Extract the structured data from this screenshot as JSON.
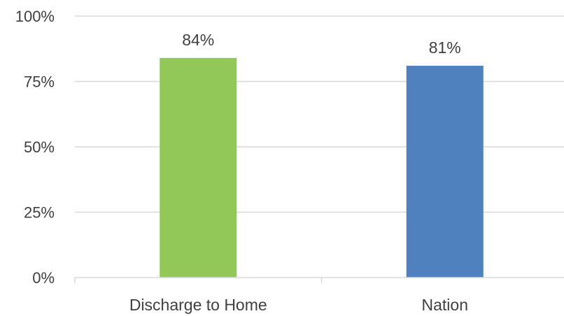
{
  "chart_data": {
    "type": "bar",
    "categories": [
      "Discharge to Home",
      "Nation"
    ],
    "values": [
      84,
      81
    ],
    "data_labels": [
      "84%",
      "81%"
    ],
    "colors": [
      "#92c857",
      "#4e81bd"
    ],
    "yticks": [
      "0%",
      "25%",
      "50%",
      "75%",
      "100%"
    ],
    "ylim": [
      0,
      100
    ],
    "grid": true,
    "legend": "none"
  }
}
